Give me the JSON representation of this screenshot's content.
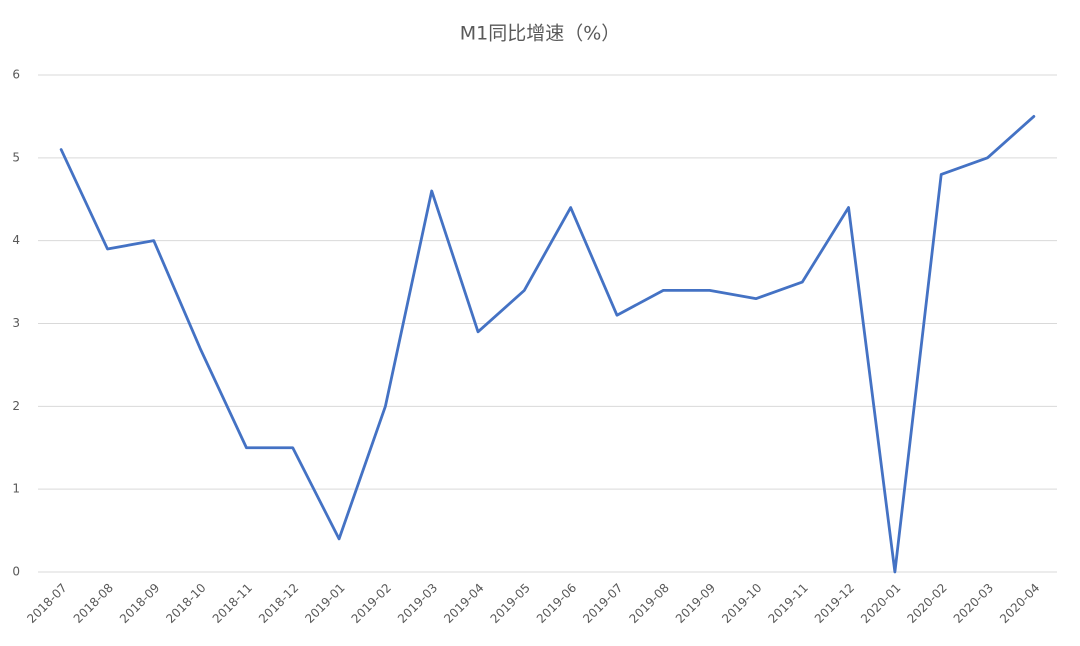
{
  "chart_data": {
    "type": "line",
    "title": "M1同比增速（%）",
    "categories": [
      "2018-07",
      "2018-08",
      "2018-09",
      "2018-10",
      "2018-11",
      "2018-12",
      "2019-01",
      "2019-02",
      "2019-03",
      "2019-04",
      "2019-05",
      "2019-06",
      "2019-07",
      "2019-08",
      "2019-09",
      "2019-10",
      "2019-11",
      "2019-12",
      "2020-01",
      "2020-02",
      "2020-03",
      "2020-04"
    ],
    "values": [
      5.1,
      3.9,
      4.0,
      2.7,
      1.5,
      1.5,
      0.4,
      2.0,
      4.6,
      2.9,
      3.4,
      4.4,
      3.1,
      3.4,
      3.4,
      3.3,
      3.5,
      4.4,
      0.0,
      4.8,
      5.0,
      5.5
    ],
    "color": "#4472c4",
    "ylim": [
      0,
      6
    ],
    "yticks": [
      0,
      1,
      2,
      3,
      4,
      5,
      6
    ],
    "grid": true
  }
}
